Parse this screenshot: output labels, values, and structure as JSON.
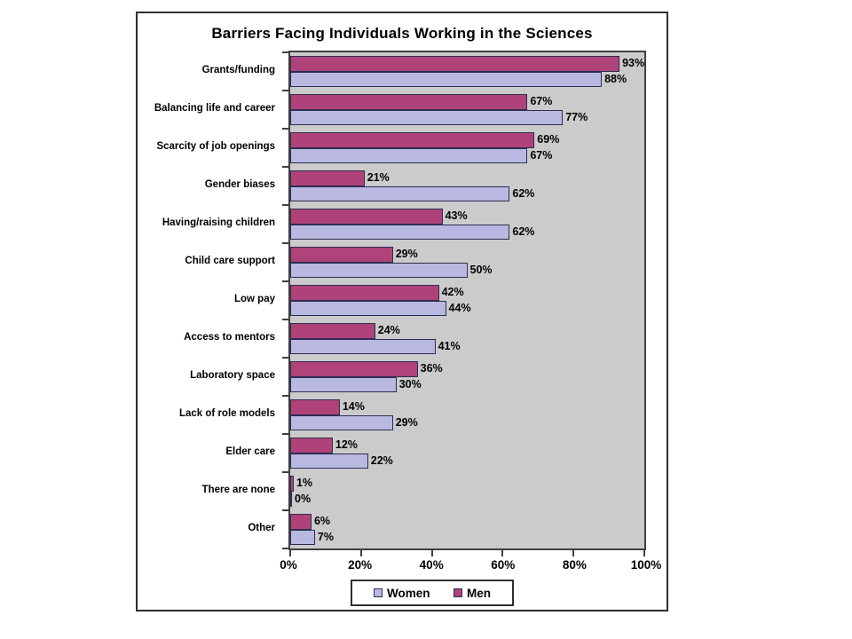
{
  "chart_data": {
    "type": "bar",
    "orientation": "horizontal",
    "title": "Barriers Facing Individuals Working in the Sciences",
    "categories": [
      "Grants/funding",
      "Balancing life and career",
      "Scarcity of job openings",
      "Gender biases",
      "Having/raising children",
      "Child care support",
      "Low pay",
      "Access to mentors",
      "Laboratory space",
      "Lack of role models",
      "Elder care",
      "There are none",
      "Other"
    ],
    "series": [
      {
        "name": "Men",
        "color": "#af4379",
        "values": [
          93,
          67,
          69,
          21,
          43,
          29,
          42,
          24,
          36,
          14,
          12,
          1,
          6
        ]
      },
      {
        "name": "Women",
        "color": "#b8b8e0",
        "values": [
          88,
          77,
          67,
          62,
          62,
          50,
          44,
          41,
          30,
          29,
          22,
          0,
          7
        ]
      }
    ],
    "value_suffix": "%",
    "x_ticks": [
      "0%",
      "20%",
      "40%",
      "60%",
      "80%",
      "100%"
    ],
    "xlim": [
      0,
      100
    ],
    "grid": false,
    "legend_position": "bottom",
    "legend": [
      {
        "label": "Women",
        "color": "#b8b8e0"
      },
      {
        "label": "Men",
        "color": "#af4379"
      }
    ],
    "plot_bg": "#cbcbcb",
    "bar_border": "#2d2d52"
  }
}
